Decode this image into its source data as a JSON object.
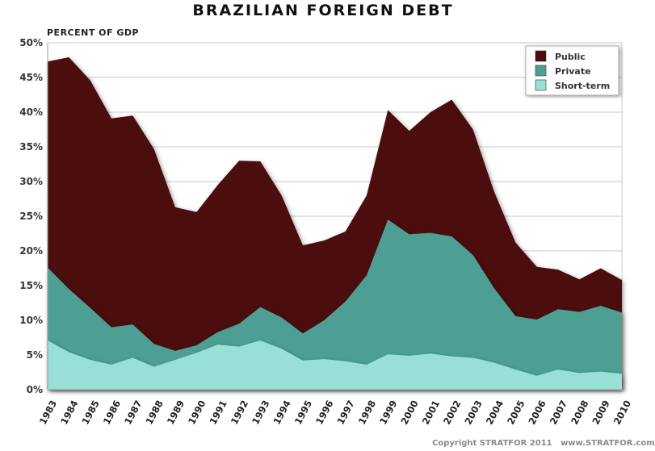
{
  "chart_data": {
    "type": "area",
    "stacked": true,
    "title": "BRAZILIAN FOREIGN DEBT",
    "ylabel": "PERCENT OF GDP",
    "xlabel": "",
    "ylim": [
      0,
      50
    ],
    "yticks": [
      0,
      5,
      10,
      15,
      20,
      25,
      30,
      35,
      40,
      45,
      50
    ],
    "ytick_format": "%",
    "grid": true,
    "legend_position": "top-right",
    "x": [
      1983,
      1984,
      1985,
      1986,
      1987,
      1988,
      1989,
      1990,
      1991,
      1992,
      1993,
      1994,
      1995,
      1996,
      1997,
      1998,
      1999,
      2000,
      2001,
      2002,
      2003,
      2004,
      2005,
      2006,
      2007,
      2008,
      2009,
      2010
    ],
    "series": [
      {
        "name": "Short-term",
        "color": "#98e0d6",
        "values": [
          7.1,
          5.4,
          4.3,
          3.6,
          4.6,
          3.3,
          4.3,
          5.3,
          6.5,
          6.2,
          7.1,
          5.9,
          4.2,
          4.4,
          4.1,
          3.6,
          5.1,
          4.9,
          5.2,
          4.8,
          4.6,
          3.9,
          2.9,
          2.0,
          2.9,
          2.4,
          2.6,
          2.3
        ]
      },
      {
        "name": "Private",
        "color": "#4e9f94",
        "values": [
          10.5,
          9.1,
          7.5,
          5.4,
          4.8,
          3.3,
          1.3,
          1.1,
          1.8,
          3.3,
          4.8,
          4.5,
          3.9,
          5.6,
          8.6,
          12.9,
          19.4,
          17.5,
          17.4,
          17.3,
          14.8,
          10.7,
          7.7,
          8.1,
          8.7,
          8.8,
          9.5,
          8.8
        ]
      },
      {
        "name": "Public",
        "color": "#4c0b0c",
        "values": [
          29.7,
          33.4,
          32.8,
          30.1,
          30.1,
          28.1,
          20.7,
          19.2,
          21.2,
          23.5,
          21.0,
          17.6,
          12.7,
          11.5,
          10.1,
          11.5,
          15.8,
          14.9,
          17.4,
          19.7,
          18.1,
          13.9,
          10.6,
          7.6,
          5.7,
          4.7,
          5.4,
          4.7
        ]
      }
    ],
    "legend_order": [
      "Public",
      "Private",
      "Short-term"
    ]
  },
  "footer": "Copyright STRATFOR 2011   www.STRATFOR.com"
}
